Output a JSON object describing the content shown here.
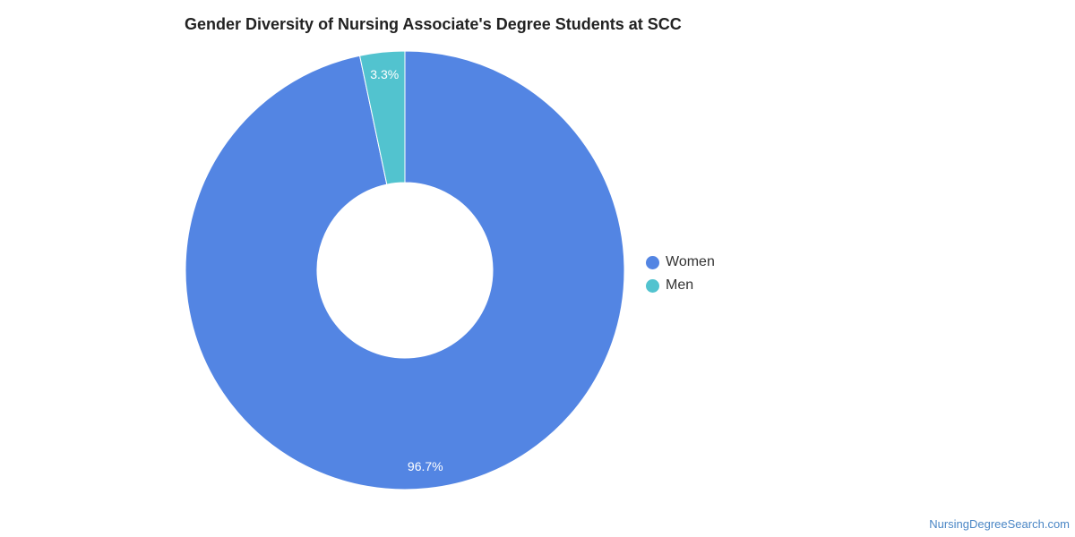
{
  "chart_data": {
    "type": "pie",
    "title": "Gender Diversity of Nursing Associate's Degree Students at SCC",
    "categories": [
      "Women",
      "Men"
    ],
    "values": [
      96.7,
      3.3
    ],
    "value_labels": [
      "96.7%",
      "3.3%"
    ],
    "colors": [
      "#5385e3",
      "#52c3cf"
    ],
    "donut": true,
    "legend_position": "right"
  },
  "footer": {
    "source": "NursingDegreeSearch.com"
  }
}
